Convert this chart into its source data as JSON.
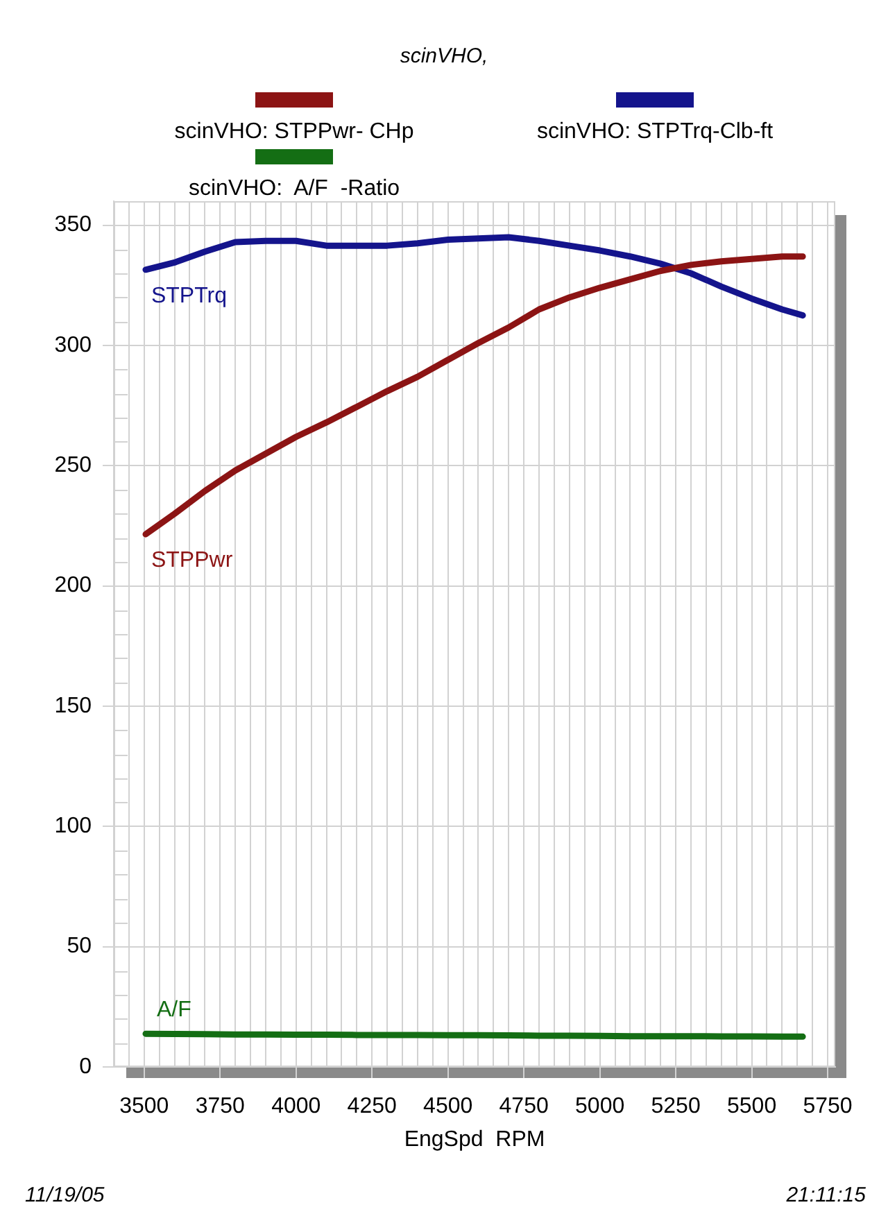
{
  "chart_data": {
    "type": "line",
    "subtitle": "scinVHO,",
    "xlabel": "EngSpd  RPM",
    "x": [
      3505,
      3600,
      3700,
      3800,
      3900,
      4000,
      4100,
      4200,
      4300,
      4400,
      4500,
      4600,
      4700,
      4800,
      4900,
      5000,
      5100,
      5200,
      5300,
      5400,
      5500,
      5600,
      5668
    ],
    "series": [
      {
        "name": "scinVHO: STPPwr- CHp",
        "color": "#8c1414",
        "values": [
          221.5,
          230,
          239.5,
          248,
          255,
          262,
          268,
          274.5,
          281,
          287,
          294,
          301,
          307.5,
          315,
          320,
          324,
          327.5,
          331,
          333.5,
          335,
          336,
          337,
          337
        ]
      },
      {
        "name": "scinVHO: STPTrq-Clb-ft",
        "color": "#14148c",
        "values": [
          331.5,
          334.5,
          339,
          343,
          343.5,
          343.5,
          341.5,
          341.5,
          341.5,
          342.5,
          344,
          344.5,
          345,
          343.5,
          341.5,
          339.5,
          337,
          334,
          330,
          324.5,
          319.5,
          315,
          312.5
        ]
      },
      {
        "name": "scinVHO:  A/F  -Ratio",
        "color": "#146e14",
        "values": [
          13.8,
          13.7,
          13.6,
          13.5,
          13.5,
          13.4,
          13.4,
          13.3,
          13.3,
          13.3,
          13.2,
          13.2,
          13.1,
          13,
          13,
          12.9,
          12.8,
          12.8,
          12.8,
          12.7,
          12.7,
          12.6,
          12.6
        ]
      }
    ],
    "xlim": [
      3400,
      5775
    ],
    "xticks": [
      {
        "value": 3450,
        "label": null
      },
      3500,
      {
        "value": 3550,
        "label": null
      },
      {
        "value": 3600,
        "label": null
      },
      {
        "value": 3650,
        "label": null
      },
      {
        "value": 3700,
        "label": null
      },
      3750,
      {
        "value": 3800,
        "label": null
      },
      {
        "value": 3850,
        "label": null
      },
      {
        "value": 3900,
        "label": null
      },
      {
        "value": 3950,
        "label": null
      },
      4000,
      {
        "value": 4050,
        "label": null
      },
      {
        "value": 4100,
        "label": null
      },
      {
        "value": 4150,
        "label": null
      },
      {
        "value": 4200,
        "label": null
      },
      4250,
      {
        "value": 4300,
        "label": null
      },
      {
        "value": 4350,
        "label": null
      },
      {
        "value": 4400,
        "label": null
      },
      {
        "value": 4450,
        "label": null
      },
      4500,
      {
        "value": 4550,
        "label": null
      },
      {
        "value": 4600,
        "label": null
      },
      {
        "value": 4650,
        "label": null
      },
      {
        "value": 4700,
        "label": null
      },
      4750,
      {
        "value": 4800,
        "label": null
      },
      {
        "value": 4850,
        "label": null
      },
      {
        "value": 4900,
        "label": null
      },
      {
        "value": 4950,
        "label": null
      },
      5000,
      {
        "value": 5050,
        "label": null
      },
      {
        "value": 5100,
        "label": null
      },
      {
        "value": 5150,
        "label": null
      },
      {
        "value": 5200,
        "label": null
      },
      5250,
      {
        "value": 5300,
        "label": null
      },
      {
        "value": 5350,
        "label": null
      },
      {
        "value": 5400,
        "label": null
      },
      {
        "value": 5450,
        "label": null
      },
      5500,
      {
        "value": 5550,
        "label": null
      },
      {
        "value": 5600,
        "label": null
      },
      {
        "value": 5650,
        "label": null
      },
      {
        "value": 5700,
        "label": null
      },
      5750
    ],
    "ylim": [
      0,
      360
    ],
    "yticks": [
      0,
      {
        "value": 10,
        "label": null
      },
      {
        "value": 20,
        "label": null
      },
      {
        "value": 30,
        "label": null
      },
      {
        "value": 40,
        "label": null
      },
      50,
      {
        "value": 60,
        "label": null
      },
      {
        "value": 70,
        "label": null
      },
      {
        "value": 80,
        "label": null
      },
      {
        "value": 90,
        "label": null
      },
      100,
      {
        "value": 110,
        "label": null
      },
      {
        "value": 120,
        "label": null
      },
      {
        "value": 130,
        "label": null
      },
      {
        "value": 140,
        "label": null
      },
      150,
      {
        "value": 160,
        "label": null
      },
      {
        "value": 170,
        "label": null
      },
      {
        "value": 180,
        "label": null
      },
      {
        "value": 190,
        "label": null
      },
      200,
      {
        "value": 210,
        "label": null
      },
      {
        "value": 220,
        "label": null
      },
      {
        "value": 230,
        "label": null
      },
      {
        "value": 240,
        "label": null
      },
      250,
      {
        "value": 260,
        "label": null
      },
      {
        "value": 270,
        "label": null
      },
      {
        "value": 280,
        "label": null
      },
      {
        "value": 290,
        "label": null
      },
      300,
      {
        "value": 310,
        "label": null
      },
      {
        "value": 320,
        "label": null
      },
      {
        "value": 330,
        "label": null
      },
      {
        "value": 340,
        "label": null
      },
      350
    ],
    "grid": true,
    "legend": "top",
    "line_style": "solid",
    "annotations": [
      "STPPwr",
      "STPTrq",
      "A/F",
      "11/19/05",
      "21:11:15"
    ]
  }
}
